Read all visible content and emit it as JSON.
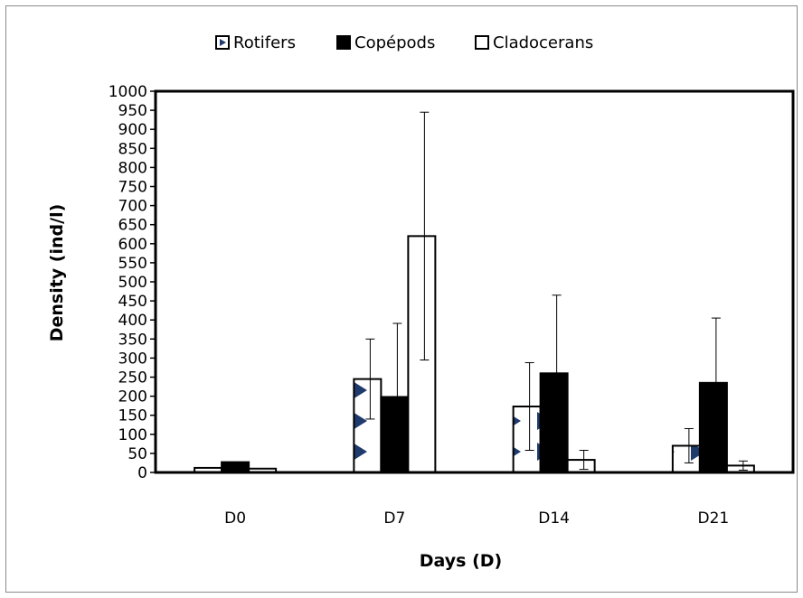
{
  "chart_data": {
    "type": "bar",
    "title": "",
    "xlabel": "Days (D)",
    "ylabel": "Density (ind/l)",
    "categories": [
      "D0",
      "D7",
      "D14",
      "D21"
    ],
    "ylim": [
      0,
      1000
    ],
    "yticks": [
      0,
      50,
      100,
      150,
      200,
      250,
      300,
      350,
      400,
      450,
      500,
      550,
      600,
      650,
      700,
      750,
      800,
      850,
      900,
      950,
      1000
    ],
    "grid": false,
    "legend": "top",
    "series": [
      {
        "name": "Rotifers",
        "values": [
          12,
          245,
          173,
          70
        ],
        "errors": [
          0,
          105,
          115,
          45
        ],
        "fill": "pattern-triangles",
        "color": "#1f3b6e"
      },
      {
        "name": "Copépods",
        "values": [
          27,
          198,
          260,
          235
        ],
        "errors": [
          0,
          193,
          205,
          170
        ],
        "fill": "solid",
        "color": "#000000"
      },
      {
        "name": "Cladocerans",
        "values": [
          10,
          620,
          33,
          18
        ],
        "errors": [
          0,
          325,
          25,
          12
        ],
        "fill": "hollow",
        "color": "#ffffff"
      }
    ]
  }
}
